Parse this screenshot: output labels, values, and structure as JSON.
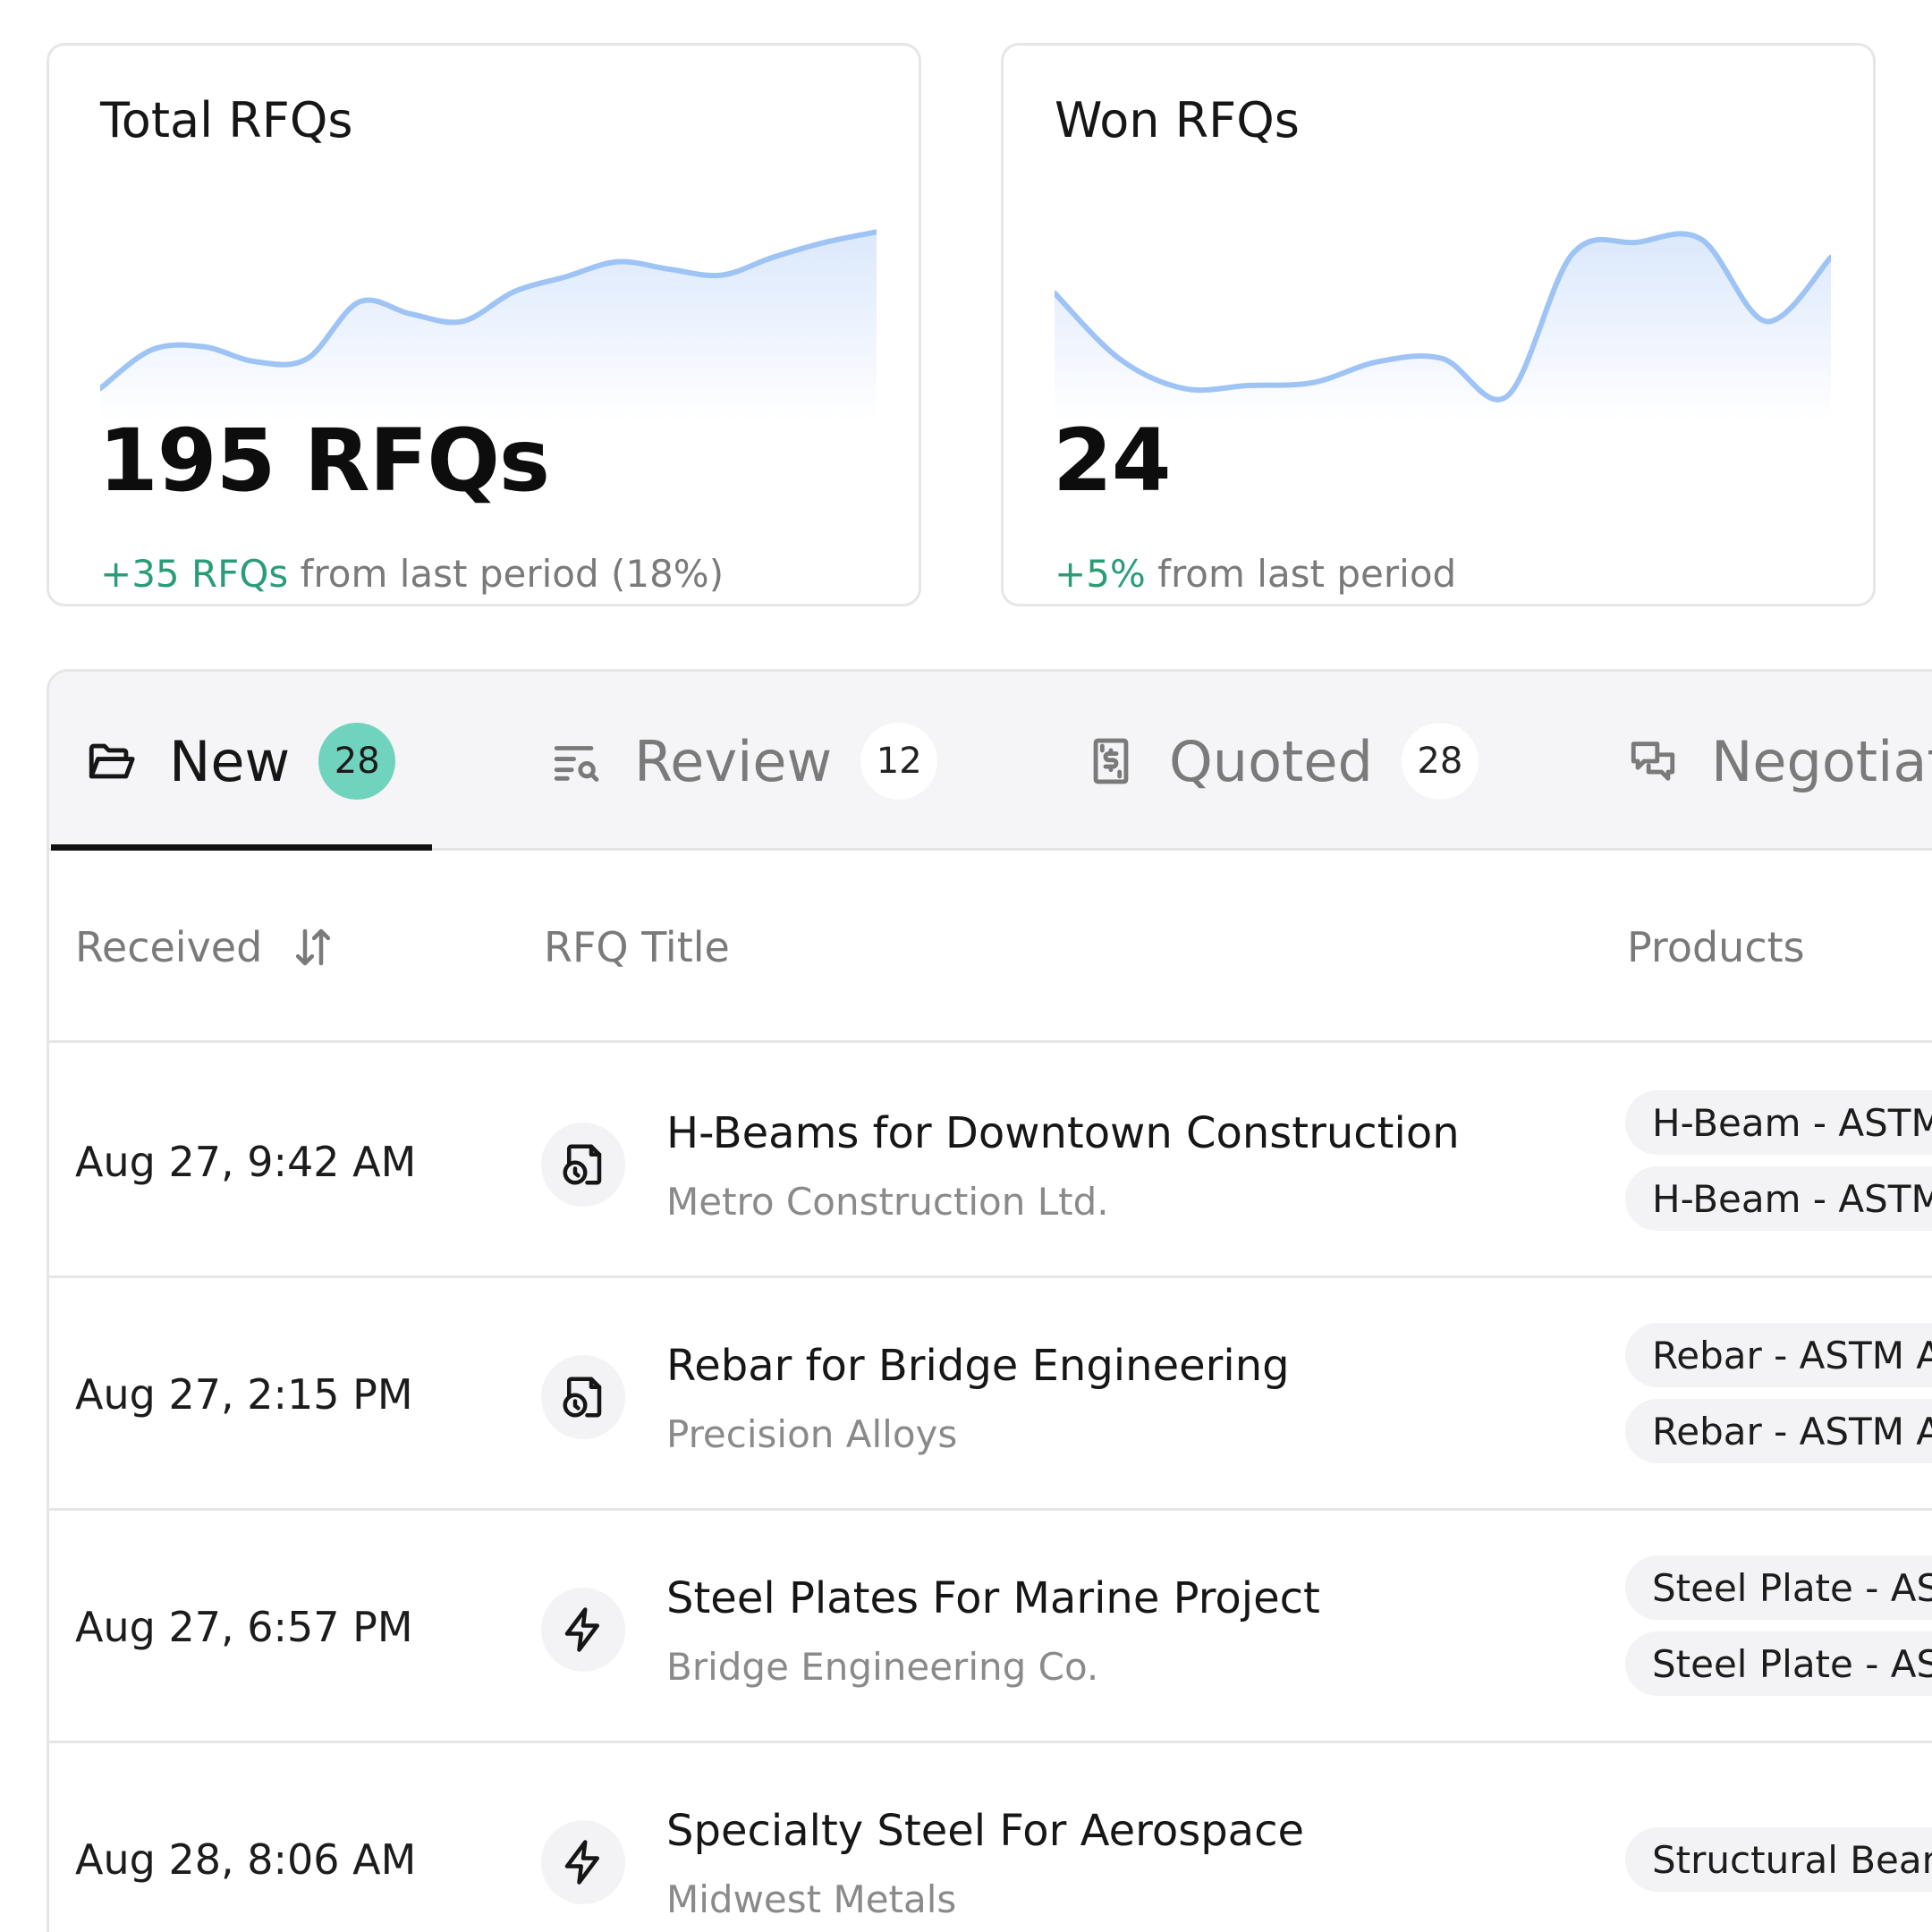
{
  "colors": {
    "accent_green": "#2a9d78",
    "badge_green": "#6fd3bd",
    "spark_line": "#9ec3f5",
    "spark_fill": "#dbe8fc"
  },
  "cards": [
    {
      "title": "Total RFQs",
      "value": "195 RFQs",
      "delta_positive": "+35 RFQs",
      "delta_rest": " from last period (18%)",
      "sparkline": [
        0.1,
        0.36,
        0.38,
        0.28,
        0.3,
        0.68,
        0.6,
        0.55,
        0.75,
        0.85,
        0.95,
        0.9,
        0.86,
        0.98,
        1.08,
        1.15
      ]
    },
    {
      "title": "Won RFQs",
      "value": "24",
      "delta_positive": "+5%",
      "delta_rest": " from last period",
      "sparkline": [
        0.74,
        0.3,
        0.1,
        0.12,
        0.14,
        0.28,
        0.3,
        0.05,
        1.0,
        1.08,
        1.1,
        0.55,
        0.98
      ]
    }
  ],
  "tabs": [
    {
      "label": "New",
      "count": "28",
      "icon": "folder-open-icon",
      "active": true
    },
    {
      "label": "Review",
      "count": "12",
      "icon": "list-search-icon",
      "active": false
    },
    {
      "label": "Quoted",
      "count": "28",
      "icon": "receipt-dollar-icon",
      "active": false
    },
    {
      "label": "Negotiat",
      "count": "",
      "icon": "chat-bubbles-icon",
      "active": false
    }
  ],
  "table": {
    "headers": {
      "received": "Received",
      "rfq_title": "RFQ Title",
      "products": "Products"
    },
    "rows": [
      {
        "received": "Aug 27, 9:42 AM",
        "icon": "file-clock-icon",
        "title": "H-Beams for Downtown Construction",
        "company": "Metro Construction Ltd.",
        "products": [
          "H-Beam - ASTM",
          "H-Beam - ASTM"
        ]
      },
      {
        "received": "Aug 27, 2:15 PM",
        "icon": "file-clock-icon",
        "title": "Rebar for Bridge Engineering",
        "company": "Precision Alloys",
        "products": [
          "Rebar - ASTM A",
          "Rebar - ASTM A"
        ]
      },
      {
        "received": "Aug 27, 6:57 PM",
        "icon": "lightning-icon",
        "title": "Steel Plates For Marine Project",
        "company": "Bridge Engineering Co.",
        "products": [
          "Steel Plate - AS",
          "Steel Plate - AS"
        ]
      },
      {
        "received": "Aug 28, 8:06 AM",
        "icon": "lightning-icon",
        "title": "Specialty Steel For Aerospace",
        "company": "Midwest Metals",
        "products": [
          "Structural Bean"
        ]
      }
    ]
  }
}
